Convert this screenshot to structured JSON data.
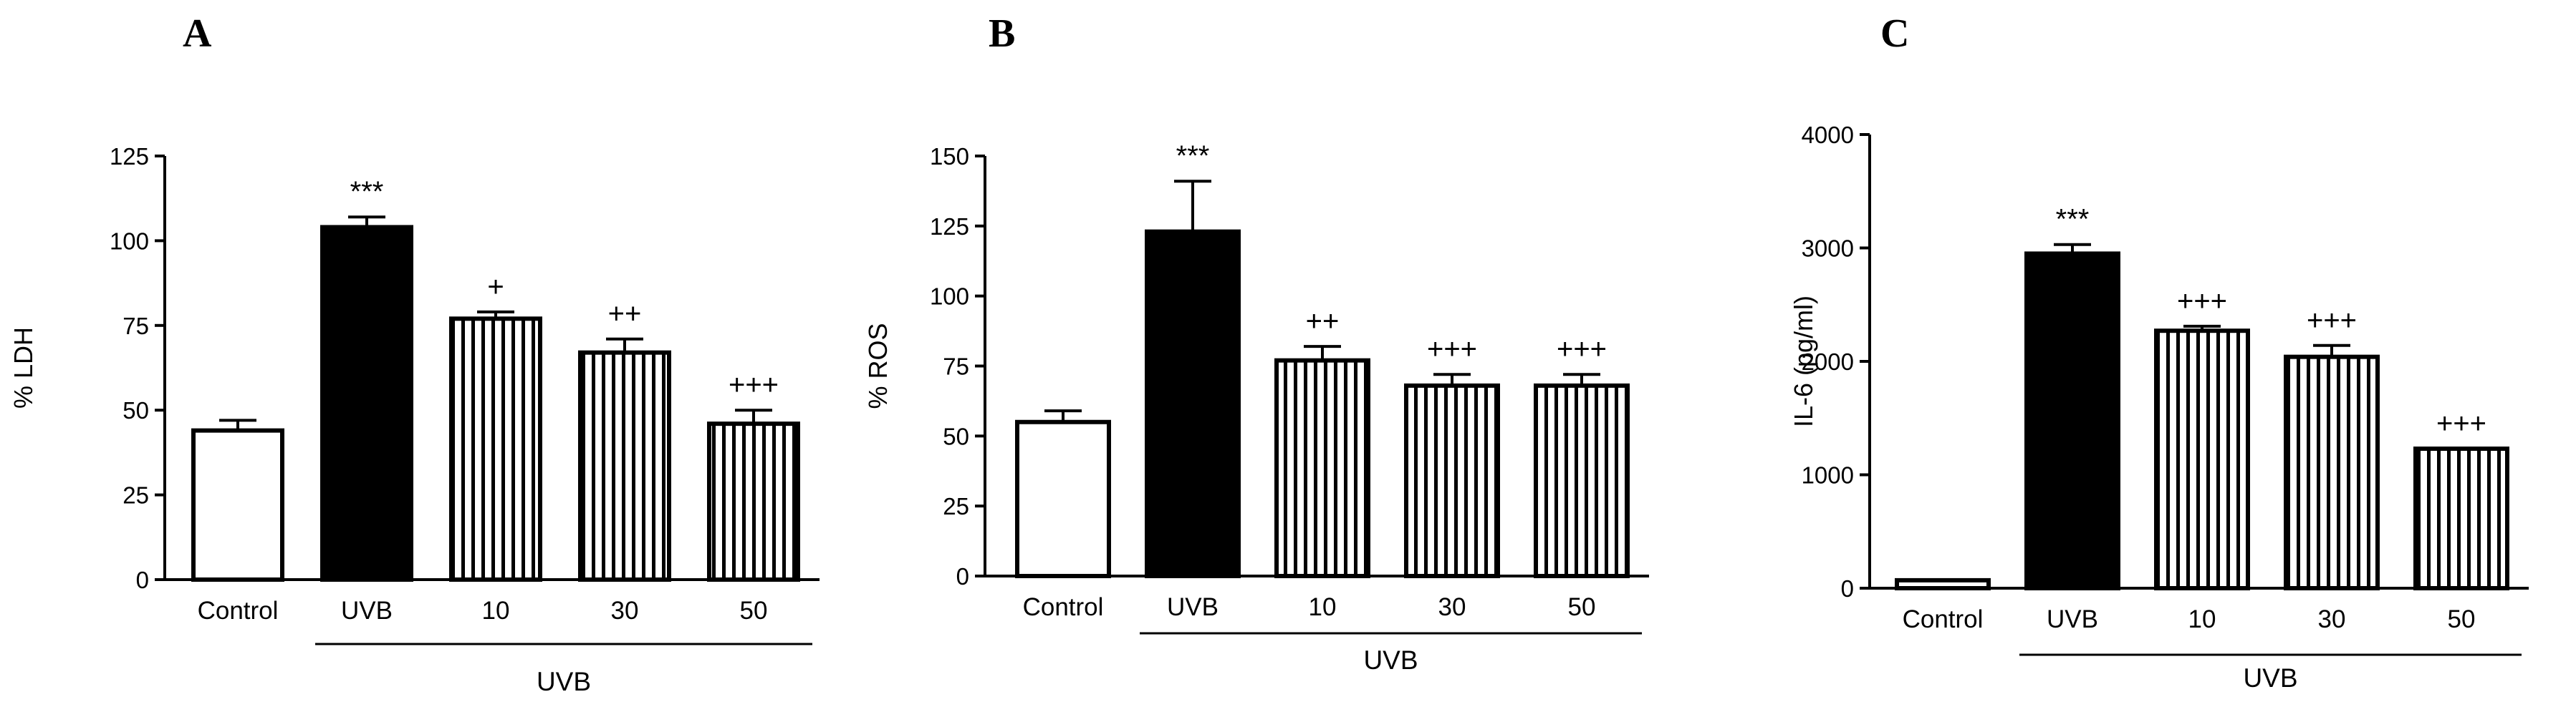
{
  "chart_data": [
    {
      "panel": "A",
      "type": "bar",
      "ylabel": "% LDH",
      "ylim": [
        0,
        125
      ],
      "yticks": [
        0,
        25,
        50,
        75,
        100,
        125
      ],
      "categories": [
        "Control",
        "UVB",
        "10",
        "30",
        "50"
      ],
      "group_label": "UVB",
      "values": [
        44,
        104,
        77,
        67,
        46
      ],
      "errors": [
        3,
        3,
        2,
        4,
        4
      ],
      "significance": [
        "",
        "***",
        "+",
        "++",
        "+++"
      ],
      "fills": [
        "white",
        "black",
        "vstripe",
        "vstripe",
        "vstripe"
      ]
    },
    {
      "panel": "B",
      "type": "bar",
      "ylabel": "% ROS",
      "ylim": [
        0,
        150
      ],
      "yticks": [
        0,
        25,
        50,
        75,
        100,
        125,
        150
      ],
      "categories": [
        "Control",
        "UVB",
        "10",
        "30",
        "50"
      ],
      "group_label": "UVB",
      "values": [
        55,
        123,
        77,
        68,
        68
      ],
      "errors": [
        4,
        18,
        5,
        4,
        4
      ],
      "significance": [
        "",
        "***",
        "++",
        "+++",
        "+++"
      ],
      "fills": [
        "white",
        "black",
        "vstripe",
        "vstripe",
        "vstripe"
      ]
    },
    {
      "panel": "C",
      "type": "bar",
      "ylabel": "IL-6 (pg/ml)",
      "ylim": [
        0,
        4000
      ],
      "yticks": [
        0,
        1000,
        2000,
        3000,
        4000
      ],
      "categories": [
        "Control",
        "UVB",
        "10",
        "30",
        "50"
      ],
      "group_label": "UVB",
      "values": [
        70,
        2950,
        2270,
        2040,
        1230
      ],
      "errors": [
        0,
        80,
        40,
        100,
        0
      ],
      "significance": [
        "",
        "***",
        "+++",
        "+++",
        "+++"
      ],
      "fills": [
        "white",
        "black",
        "vstripe",
        "vstripe",
        "vstripe"
      ]
    }
  ]
}
